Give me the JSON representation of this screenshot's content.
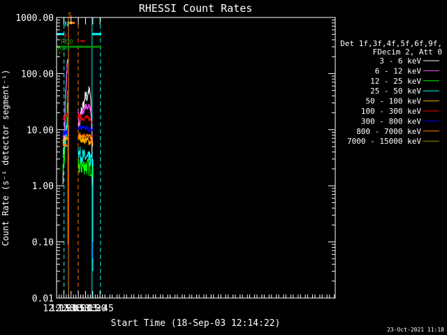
{
  "chart_data": {
    "type": "line",
    "title": "RHESSI Count Rates",
    "xlabel": "Start Time (18-Sep-03 12:14:22)",
    "ylabel": "Count Rate (s⁻¹ detector segment⁻¹)",
    "yscale": "log",
    "ylim": [
      0.01,
      1000
    ],
    "xlim_min": [
      735,
      1312
    ],
    "x_ticks": [
      {
        "min": 735,
        "label": "12:15"
      },
      {
        "min": 750,
        "label": "12:30"
      },
      {
        "min": 765,
        "label": "12:45"
      },
      {
        "min": 780,
        "label": "13:00"
      },
      {
        "min": 795,
        "label": "13:15"
      },
      {
        "min": 810,
        "label": "13:30"
      },
      {
        "min": 825,
        "label": "13:45"
      }
    ],
    "y_ticks": [
      {
        "value": 1000,
        "label": "1000.00"
      },
      {
        "value": 100,
        "label": "100.00"
      },
      {
        "value": 10,
        "label": "10.00"
      },
      {
        "value": 1,
        "label": "1.00"
      },
      {
        "value": 0.1,
        "label": "0.10"
      },
      {
        "value": 0.01,
        "label": "0.01"
      }
    ],
    "legend": {
      "placement": "right",
      "header": [
        "Det 1f,3f,4f,5f,6f,9f,",
        "FDecim 2, Att 0"
      ]
    },
    "series": [
      {
        "name": "3 - 6 keV",
        "color": "#ffffff",
        "segments": [
          [
            [
              748.2,
              1.3
            ],
            [
              749,
              2.3
            ],
            [
              750,
              2.6
            ],
            [
              751,
              3.2
            ],
            [
              752,
              9
            ],
            [
              753,
              30
            ],
            [
              754,
              45
            ],
            [
              755,
              70
            ],
            [
              756,
              100
            ],
            [
              757,
              150
            ],
            [
              758,
              180
            ]
          ],
          [
            [
              779.8,
              18
            ],
            [
              781,
              12
            ],
            [
              782,
              10
            ],
            [
              783,
              10.5
            ],
            [
              784,
              15
            ],
            [
              785,
              20
            ],
            [
              786,
              22
            ],
            [
              787,
              22
            ],
            [
              788,
              24
            ],
            [
              789,
              25
            ],
            [
              790,
              27
            ],
            [
              791,
              28
            ],
            [
              792,
              30
            ],
            [
              793,
              36
            ],
            [
              794,
              40
            ],
            [
              795,
              44
            ],
            [
              796,
              42
            ],
            [
              797,
              38
            ],
            [
              798,
              36
            ],
            [
              799,
              40
            ],
            [
              800,
              45
            ],
            [
              801,
              48
            ],
            [
              802,
              50
            ],
            [
              803,
              48
            ],
            [
              804,
              46
            ],
            [
              805,
              40
            ],
            [
              806,
              30
            ],
            [
              807,
              16
            ],
            [
              808,
              8
            ],
            [
              809,
              1.5
            ],
            [
              810,
              1.0
            ]
          ]
        ]
      },
      {
        "name": "6 - 12 keV",
        "color": "#ff55ff",
        "segments": [
          [
            [
              748.2,
              8
            ],
            [
              749,
              7
            ],
            [
              751,
              8
            ],
            [
              752,
              20
            ],
            [
              753,
              35
            ],
            [
              754,
              45
            ],
            [
              755,
              65
            ],
            [
              756,
              90
            ],
            [
              757,
              120
            ],
            [
              758,
              160
            ]
          ],
          [
            [
              779.8,
              20
            ],
            [
              781,
              14
            ],
            [
              782,
              13
            ],
            [
              783,
              15
            ],
            [
              785,
              18
            ],
            [
              787,
              20
            ],
            [
              789,
              20
            ],
            [
              791,
              22
            ],
            [
              793,
              24
            ],
            [
              795,
              26
            ],
            [
              797,
              25
            ],
            [
              799,
              25
            ],
            [
              801,
              27
            ],
            [
              803,
              26
            ],
            [
              805,
              24
            ],
            [
              806,
              22
            ],
            [
              807,
              12
            ],
            [
              808,
              9
            ],
            [
              809,
              6
            ],
            [
              810,
              5
            ]
          ]
        ]
      },
      {
        "name": "12 - 25 keV",
        "color": "#00ff00",
        "segments": [
          [
            [
              748.2,
              2
            ],
            [
              749,
              2
            ],
            [
              750,
              2.5
            ],
            [
              751,
              3
            ],
            [
              752,
              4
            ],
            [
              753,
              6
            ],
            [
              754,
              8
            ],
            [
              755,
              10
            ],
            [
              756,
              13
            ],
            [
              757,
              20
            ],
            [
              758,
              50
            ]
          ],
          [
            [
              779.8,
              2.2
            ],
            [
              782,
              2.2
            ],
            [
              785,
              2.2
            ],
            [
              788,
              2.2
            ],
            [
              791,
              2.2
            ],
            [
              794,
              2.3
            ],
            [
              797,
              2.2
            ],
            [
              800,
              2.2
            ],
            [
              803,
              2.1
            ],
            [
              806,
              2.1
            ],
            [
              808,
              2.0
            ],
            [
              809,
              1.8
            ],
            [
              810,
              1.7
            ]
          ]
        ]
      },
      {
        "name": "25 - 50 keV",
        "color": "#00ffff",
        "segments": [
          [
            [
              748.2,
              4
            ],
            [
              749,
              4.3
            ],
            [
              750,
              4.5
            ],
            [
              751,
              4.8
            ],
            [
              752,
              5.3
            ],
            [
              753,
              6
            ],
            [
              754,
              7
            ],
            [
              755,
              8.5
            ],
            [
              756,
              10
            ],
            [
              757,
              14
            ],
            [
              758,
              30
            ]
          ],
          [
            [
              779.8,
              4.5
            ],
            [
              782,
              3.8
            ],
            [
              785,
              3.5
            ],
            [
              788,
              3.4
            ],
            [
              791,
              3.3
            ],
            [
              794,
              3.2
            ],
            [
              797,
              3.1
            ],
            [
              800,
              3.0
            ],
            [
              803,
              3.0
            ],
            [
              806,
              2.9
            ],
            [
              808,
              2.8
            ],
            [
              809,
              2.7
            ],
            [
              810,
              2.6
            ]
          ]
        ]
      },
      {
        "name": "50 - 100 keV",
        "color": "#ffaa00",
        "segments": [
          [
            [
              748.2,
              6
            ],
            [
              749,
              6
            ],
            [
              751,
              6
            ],
            [
              753,
              6.5
            ],
            [
              755,
              7
            ],
            [
              757,
              7
            ],
            [
              758,
              7.5
            ]
          ],
          [
            [
              779.8,
              7.5
            ],
            [
              782,
              7.2
            ],
            [
              785,
              7
            ],
            [
              788,
              6.8
            ],
            [
              791,
              6.6
            ],
            [
              794,
              6.6
            ],
            [
              797,
              6.5
            ],
            [
              800,
              6.3
            ],
            [
              803,
              6.1
            ],
            [
              806,
              6.0
            ],
            [
              808,
              5.9
            ],
            [
              810,
              5.8
            ]
          ]
        ]
      },
      {
        "name": "100 - 300 keV",
        "color": "#ff0000",
        "segments": [
          [
            [
              748.2,
              15
            ],
            [
              749,
              15
            ],
            [
              751,
              16
            ],
            [
              753,
              16.5
            ],
            [
              755,
              17
            ],
            [
              757,
              18
            ],
            [
              758,
              18
            ]
          ],
          [
            [
              779.8,
              18
            ],
            [
              782,
              17
            ],
            [
              785,
              16.5
            ],
            [
              788,
              16
            ],
            [
              791,
              16
            ],
            [
              794,
              16.5
            ],
            [
              797,
              16.5
            ],
            [
              800,
              16
            ],
            [
              803,
              15.5
            ],
            [
              806,
              15
            ],
            [
              808,
              14.5
            ],
            [
              810,
              14
            ]
          ]
        ]
      },
      {
        "name": "300 - 800 keV",
        "color": "#0000ff",
        "segments": [
          [
            [
              748.2,
              9
            ],
            [
              749,
              9
            ],
            [
              751,
              8.8
            ],
            [
              753,
              8.8
            ],
            [
              755,
              8.8
            ],
            [
              757,
              8.8
            ],
            [
              758,
              9
            ]
          ],
          [
            [
              779.8,
              11
            ],
            [
              782,
              11
            ],
            [
              785,
              10.8
            ],
            [
              788,
              10.5
            ],
            [
              791,
              10.5
            ],
            [
              794,
              10.5
            ],
            [
              797,
              10.5
            ],
            [
              800,
              10.3
            ],
            [
              803,
              10.2
            ],
            [
              806,
              10
            ],
            [
              808,
              9.9
            ],
            [
              810,
              9.8
            ]
          ]
        ]
      },
      {
        "name": "800 - 7000 keV",
        "color": "#ff7f00",
        "segments": [
          [
            [
              748.2,
              5.5
            ],
            [
              749,
              5.5
            ],
            [
              751,
              5.3
            ],
            [
              753,
              5.2
            ],
            [
              755,
              5.2
            ],
            [
              757,
              5.1
            ],
            [
              758,
              5
            ]
          ],
          [
            [
              779.8,
              8
            ],
            [
              782,
              8.2
            ],
            [
              785,
              8.2
            ],
            [
              788,
              8
            ],
            [
              791,
              8
            ],
            [
              794,
              8
            ],
            [
              797,
              7.8
            ],
            [
              800,
              7.6
            ],
            [
              803,
              7.5
            ],
            [
              806,
              7.3
            ],
            [
              808,
              7.2
            ],
            [
              810,
              7
            ]
          ]
        ]
      },
      {
        "name": "7000 - 15000 keV",
        "color": "#aa8800",
        "segments": []
      }
    ],
    "spikes": [
      {
        "x": 758.5,
        "y_from": 12,
        "y_to": 0.09,
        "color": "#ff7f00"
      },
      {
        "x": 810.3,
        "y_from": 3,
        "y_to": 0.03,
        "color": "#00ffff"
      },
      {
        "x": 810.6,
        "y_from": 0.1,
        "y_to": 0.05,
        "color": "#0000ff"
      }
    ],
    "vlines": [
      {
        "x": 735.1,
        "color": "#00ffff",
        "style": "solid"
      },
      {
        "x": 750.4,
        "color": "#00ffff",
        "style": "dashed"
      },
      {
        "x": 759.7,
        "color": "#ff7f00",
        "style": "solid"
      },
      {
        "x": 779.8,
        "color": "#ff7f00",
        "style": "dashed"
      },
      {
        "x": 808.5,
        "color": "#00ffff",
        "style": "solid"
      },
      {
        "x": 825.9,
        "color": "#00ffff",
        "style": "dashed"
      }
    ],
    "flag_bars": [
      {
        "x1": 735,
        "x2": 750.4,
        "y": 505,
        "color": "#00ffff"
      },
      {
        "x1": 759.7,
        "x2": 772.6,
        "y": 800,
        "color": "#ff7f00"
      },
      {
        "x1": 752.4,
        "x2": 755.7,
        "y": 380,
        "color": "#ff0000"
      },
      {
        "x1": 779.4,
        "x2": 780.6,
        "y": 380,
        "color": "#ff0000"
      },
      {
        "x1": 784.8,
        "x2": 788.8,
        "y": 380,
        "color": "#ff0000"
      },
      {
        "x1": 790.2,
        "x2": 793.4,
        "y": 380,
        "color": "#ff0000"
      },
      {
        "x1": 808.5,
        "x2": 827.5,
        "y": 505,
        "color": "#00ffff"
      },
      {
        "x1": 735,
        "x2": 827.5,
        "y": 300,
        "color": "#008800"
      },
      {
        "x1": 739.5,
        "x2": 748.7,
        "y": 300,
        "color": "#008800"
      },
      {
        "x1": 739.5,
        "x2": 742.5,
        "y": 235,
        "color": "#008800"
      }
    ],
    "flag_labels": [
      {
        "text": "N",
        "x": 751.3,
        "y": 700,
        "color": "#00ffff"
      },
      {
        "text": "S",
        "x": 758.3,
        "y": 1000,
        "color": "#ff7f00"
      },
      {
        "text": "F",
        "x": 750.3,
        "y": 415,
        "color": "#ff0000"
      },
      {
        "text": "RD0",
        "x": 743.5,
        "y": 335,
        "color": "#008800"
      },
      {
        "text": "RD4",
        "x": 737.2,
        "y": 255,
        "color": "#008800"
      }
    ]
  },
  "timestamp": "23-Oct-2021 11:18"
}
